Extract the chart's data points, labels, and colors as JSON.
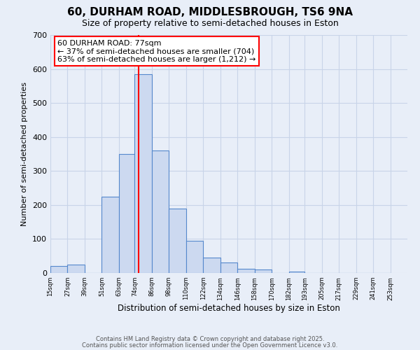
{
  "title": "60, DURHAM ROAD, MIDDLESBROUGH, TS6 9NA",
  "subtitle": "Size of property relative to semi-detached houses in Eston",
  "xlabel": "Distribution of semi-detached houses by size in Eston",
  "ylabel": "Number of semi-detached properties",
  "bin_labels": [
    "15sqm",
    "27sqm",
    "39sqm",
    "51sqm",
    "63sqm",
    "74sqm",
    "86sqm",
    "98sqm",
    "110sqm",
    "122sqm",
    "134sqm",
    "146sqm",
    "158sqm",
    "170sqm",
    "182sqm",
    "193sqm",
    "205sqm",
    "217sqm",
    "229sqm",
    "241sqm",
    "253sqm"
  ],
  "bin_edges": [
    15,
    27,
    39,
    51,
    63,
    74,
    86,
    98,
    110,
    122,
    134,
    146,
    158,
    170,
    182,
    193,
    205,
    217,
    229,
    241,
    253
  ],
  "bar_heights": [
    20,
    25,
    0,
    225,
    350,
    585,
    360,
    190,
    95,
    45,
    30,
    12,
    10,
    0,
    5,
    0,
    0,
    0,
    0,
    0
  ],
  "bar_color": "#ccd9f0",
  "bar_edge_color": "#5588cc",
  "property_line_x": 77,
  "property_line_color": "red",
  "annotation_line1": "60 DURHAM ROAD: 77sqm",
  "annotation_line2": "← 37% of semi-detached houses are smaller (704)",
  "annotation_line3": "63% of semi-detached houses are larger (1,212) →",
  "ylim": [
    0,
    700
  ],
  "yticks": [
    0,
    100,
    200,
    300,
    400,
    500,
    600,
    700
  ],
  "background_color": "#e8eef8",
  "plot_bg_color": "#e8eef8",
  "grid_color": "#c8d4e8",
  "footer_line1": "Contains HM Land Registry data © Crown copyright and database right 2025.",
  "footer_line2": "Contains public sector information licensed under the Open Government Licence v3.0.",
  "title_fontsize": 11,
  "subtitle_fontsize": 9,
  "xlabel_fontsize": 8.5,
  "ylabel_fontsize": 8
}
